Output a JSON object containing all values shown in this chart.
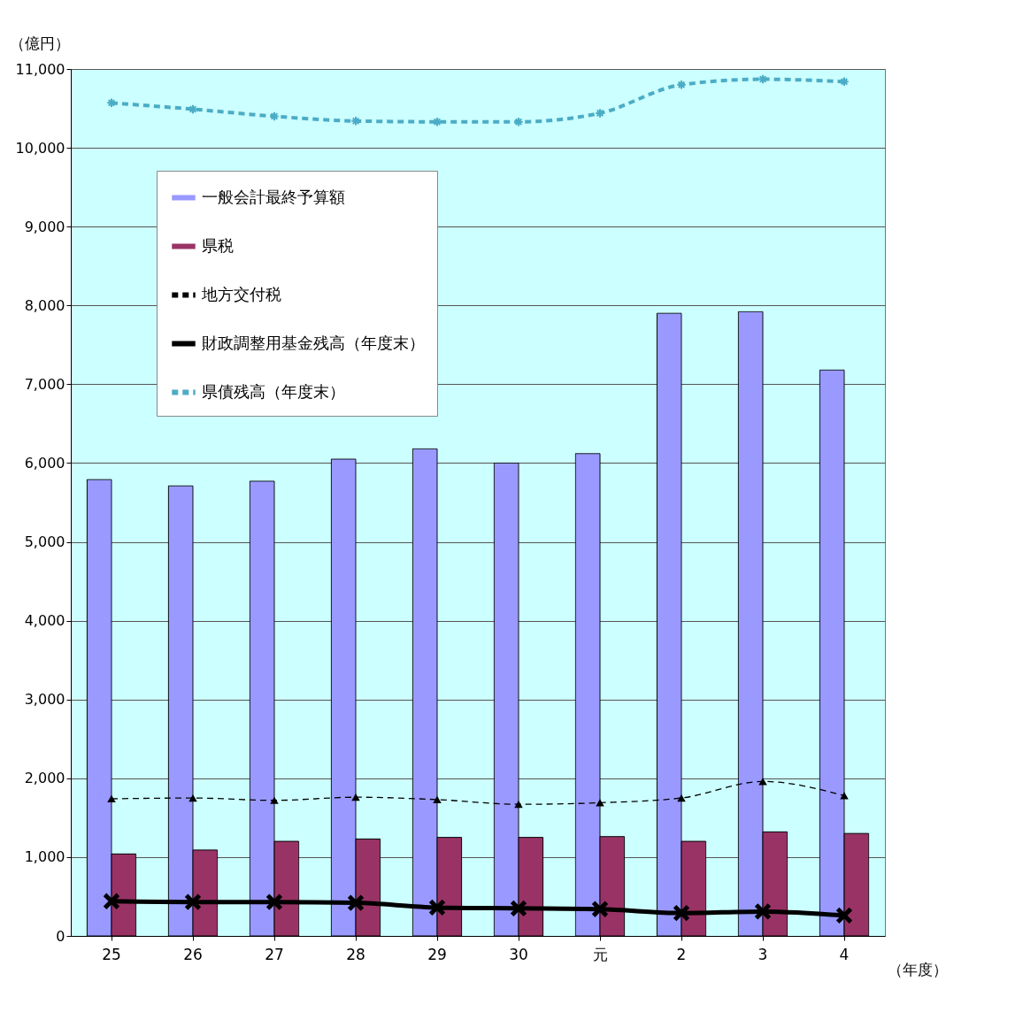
{
  "chart_data": {
    "type": "bar",
    "ylabel": "（億円）",
    "xlabel": "（年度）",
    "categories": [
      "25",
      "26",
      "27",
      "28",
      "29",
      "30",
      "元",
      "2",
      "3",
      "4"
    ],
    "series": [
      {
        "name": "一般会計最終予算額",
        "color": "#9999ff",
        "values": [
          5790,
          5710,
          5770,
          6050,
          6180,
          6000,
          6120,
          7900,
          7920,
          7180
        ]
      },
      {
        "name": "県税",
        "color": "#993366",
        "values": [
          1040,
          1090,
          1200,
          1230,
          1250,
          1250,
          1260,
          1200,
          1320,
          1300
        ]
      },
      {
        "name": "地方交付税",
        "type": "line",
        "color": "#000000",
        "marker": "triangle",
        "line_style": "dashed",
        "values": [
          1740,
          1750,
          1720,
          1760,
          1730,
          1670,
          1690,
          1750,
          1960,
          1780
        ]
      },
      {
        "name": "財政調整用基金残高（年度末）",
        "type": "line",
        "color": "#000000",
        "marker": "cross",
        "line_style": "solid",
        "values": [
          440,
          430,
          430,
          420,
          360,
          350,
          340,
          290,
          310,
          260
        ]
      },
      {
        "name": "県債残高（年度末）",
        "type": "line",
        "color": "#4bacc6",
        "marker": "cross",
        "line_style": "dashed",
        "values": [
          10570,
          10490,
          10400,
          10340,
          10330,
          10330,
          10440,
          10800,
          10870,
          10840
        ]
      }
    ],
    "ylim": [
      0,
      11000
    ],
    "yticks": [
      0,
      {
        "value": 1000,
        "label": "1,000"
      },
      {
        "value": 2000,
        "label": "2,000"
      },
      {
        "value": 3000,
        "label": "3,000"
      },
      {
        "value": 4000,
        "label": "4,000"
      },
      {
        "value": 5000,
        "label": "5,000"
      },
      {
        "value": 6000,
        "label": "6,000"
      },
      {
        "value": 7000,
        "label": "7,000"
      },
      {
        "value": 8000,
        "label": "8,000"
      },
      {
        "value": 9000,
        "label": "9,000"
      },
      {
        "value": 10000,
        "label": "10,000"
      },
      {
        "value": 11000,
        "label": "11,000"
      }
    ],
    "grid": "y",
    "legend": "top left"
  }
}
